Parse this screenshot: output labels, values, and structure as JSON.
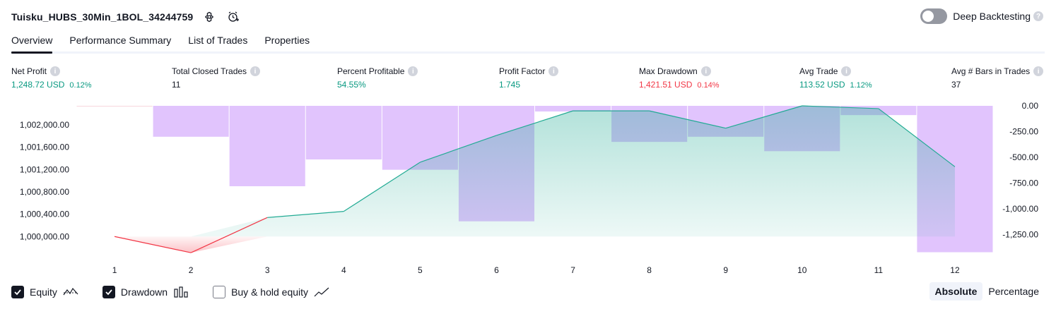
{
  "header": {
    "title": "Tuisku_HUBS_30Min_1BOL_34244759",
    "deep_backtesting_label": "Deep Backtesting",
    "help_glyph": "?"
  },
  "tabs": [
    {
      "label": "Overview"
    },
    {
      "label": "Performance Summary"
    },
    {
      "label": "List of Trades"
    },
    {
      "label": "Properties"
    }
  ],
  "metrics": {
    "info_glyph": "i",
    "net_profit": {
      "label": "Net Profit",
      "value": "1,248.72 USD",
      "pct": "0.12%"
    },
    "total_closed_trades": {
      "label": "Total Closed Trades",
      "value": "11"
    },
    "percent_profitable": {
      "label": "Percent Profitable",
      "value": "54.55%"
    },
    "profit_factor": {
      "label": "Profit Factor",
      "value": "1.745"
    },
    "max_drawdown": {
      "label": "Max Drawdown",
      "value": "1,421.51 USD",
      "pct": "0.14%"
    },
    "avg_trade": {
      "label": "Avg Trade",
      "value": "113.52 USD",
      "pct": "1.12%"
    },
    "avg_bars": {
      "label": "Avg # Bars in Trades",
      "value": "37"
    }
  },
  "colors": {
    "positive": "#089981",
    "negative": "#f23645",
    "equity_line": "#22ab94",
    "drawdown_bar": "#e1c4fd",
    "neutral_text": "#131722"
  },
  "chart_data": {
    "type": "line+bar",
    "x": [
      1,
      2,
      3,
      4,
      5,
      6,
      7,
      8,
      9,
      10,
      11,
      12
    ],
    "y_left_ticks": [
      "1,000,000.00",
      "1,000,400.00",
      "1,000,800.00",
      "1,001,200.00",
      "1,001,600.00",
      "1,002,000.00"
    ],
    "y_left_tick_values": [
      1000000,
      1000400,
      1000800,
      1001200,
      1001600,
      1002000
    ],
    "y_right_ticks": [
      "0.00",
      "-250.00",
      "-500.00",
      "-750.00",
      "-1,000.00",
      "-1,250.00"
    ],
    "y_right_tick_values": [
      0,
      -250,
      -500,
      -750,
      -1000,
      -1250
    ],
    "ylim_left": [
      999700,
      1002340
    ],
    "ylim_right": [
      -1430,
      0
    ],
    "series": [
      {
        "name": "Equity",
        "axis": "left",
        "values": [
          1000000,
          999710,
          1000340,
          1000450,
          1001330,
          1001810,
          1002250,
          1002250,
          1001940,
          1002340,
          1002290,
          1001250
        ]
      },
      {
        "name": "Drawdown",
        "axis": "right",
        "values": [
          0,
          -300,
          -780,
          -520,
          -620,
          -1120,
          -55,
          -350,
          -300,
          -440,
          -90,
          -1420
        ]
      }
    ],
    "legend": [
      {
        "name": "Equity",
        "checked": true
      },
      {
        "name": "Drawdown",
        "checked": true
      },
      {
        "name": "Buy & hold equity",
        "checked": false
      }
    ]
  },
  "footer": {
    "absolute_label": "Absolute",
    "percentage_label": "Percentage"
  }
}
